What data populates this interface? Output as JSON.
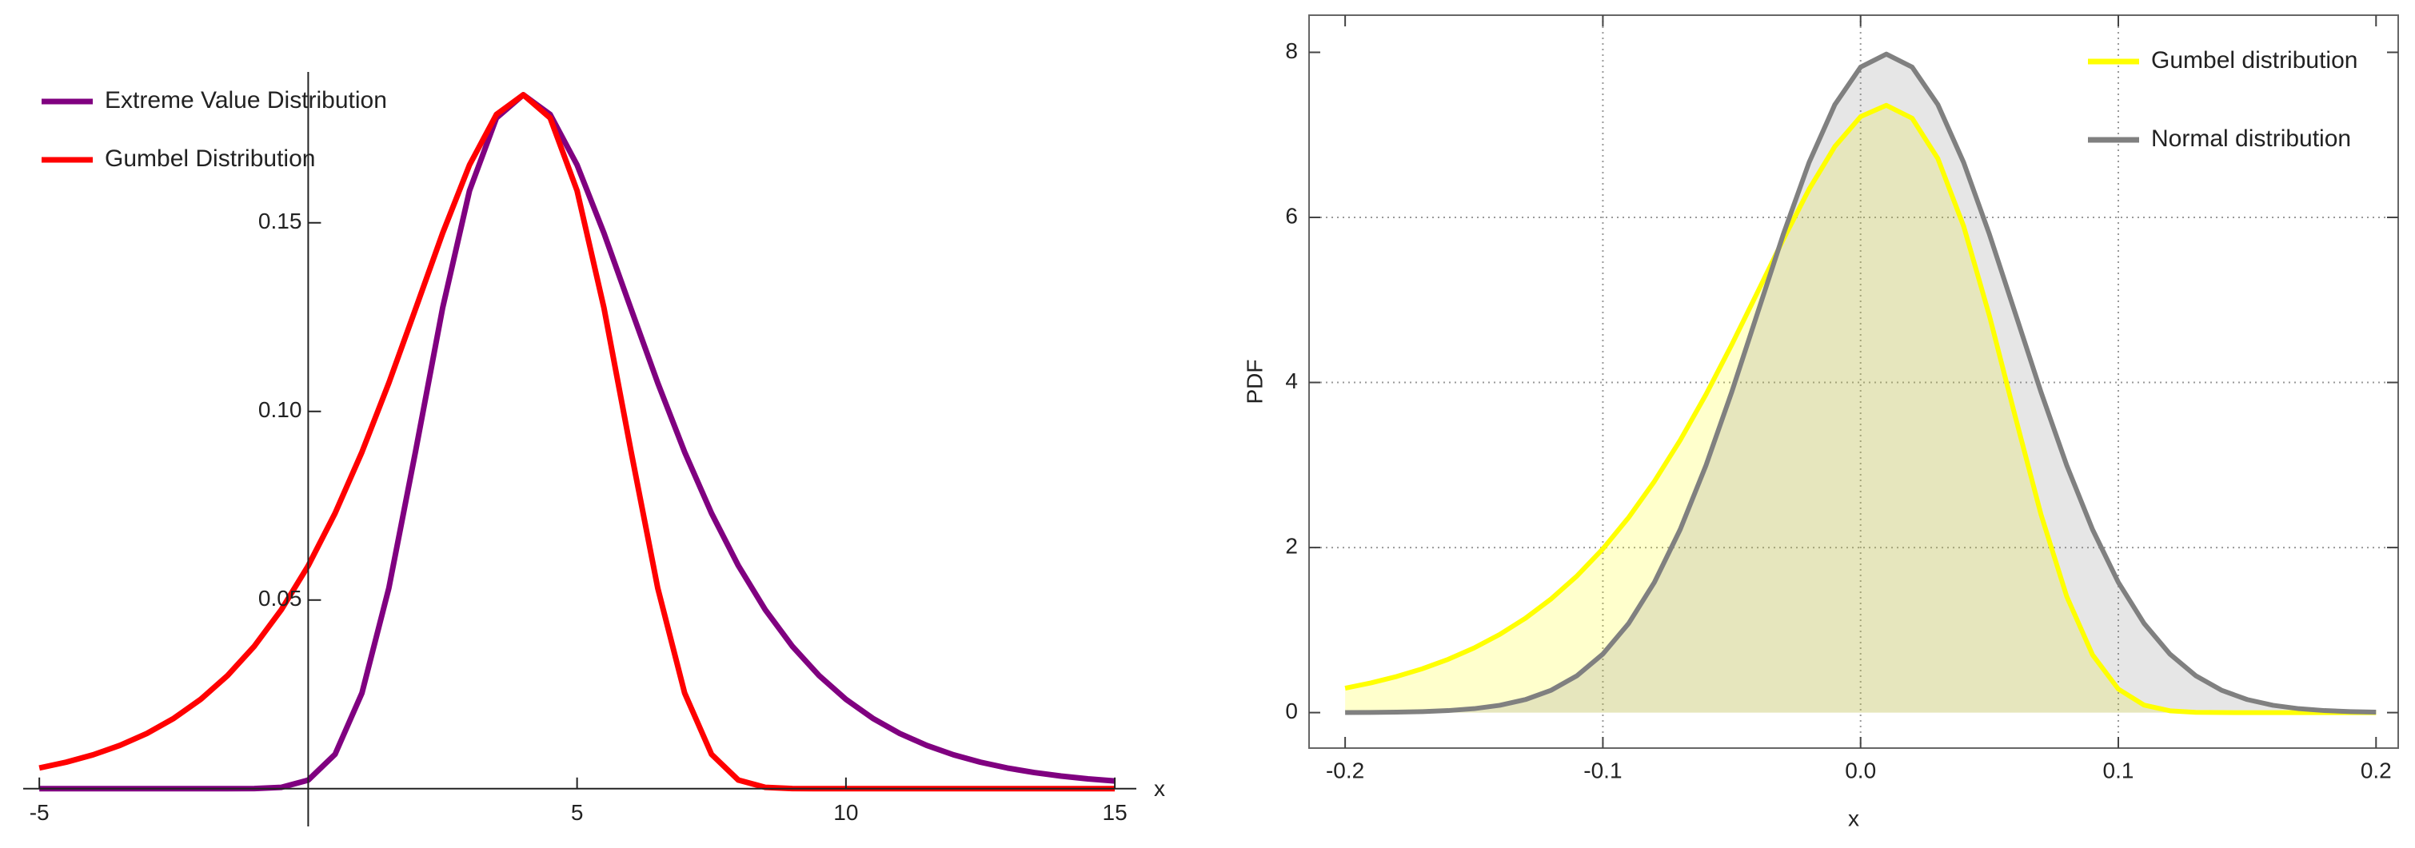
{
  "chart_data": [
    {
      "type": "line",
      "x": [
        -5,
        -4.5,
        -4,
        -3.5,
        -3,
        -2.5,
        -2,
        -1.5,
        -1,
        -0.5,
        0,
        0.5,
        1,
        1.5,
        2,
        2.5,
        3,
        3.5,
        4,
        4.5,
        5,
        5.5,
        6,
        6.5,
        7,
        7.5,
        8,
        8.5,
        9,
        9.5,
        10,
        10.5,
        11,
        11.5,
        12,
        12.5,
        13,
        13.5,
        14,
        14.5,
        15
      ],
      "series": [
        {
          "name": "Extreme Value Distribution",
          "color": "#800080",
          "values": [
            0,
            0,
            0,
            0,
            0,
            0,
            0,
            0,
            3e-05,
            0.00036,
            0.00228,
            0.00912,
            0.02537,
            0.05319,
            0.08969,
            0.12745,
            0.15853,
            0.17779,
            0.18394,
            0.17872,
            0.16535,
            0.14727,
            0.12732,
            0.10757,
            0.08925,
            0.07303,
            0.0591,
            0.04743,
            0.03781,
            0.02999,
            0.02368,
            0.01865,
            0.01465,
            0.01149,
            0.00899,
            0.00703,
            0.00549,
            0.00429,
            0.00335,
            0.00261,
            0.00204
          ]
        },
        {
          "name": "Gumbel Distribution",
          "color": "#ff0000",
          "values": [
            0.00549,
            0.00703,
            0.00899,
            0.01149,
            0.01465,
            0.01865,
            0.02368,
            0.02999,
            0.03781,
            0.04743,
            0.0591,
            0.07303,
            0.08925,
            0.10757,
            0.12732,
            0.14727,
            0.16535,
            0.17872,
            0.18394,
            0.17779,
            0.15853,
            0.12745,
            0.08969,
            0.05319,
            0.02537,
            0.00912,
            0.00228,
            0.00036,
            3e-05,
            0,
            0,
            0,
            0,
            0,
            0,
            0,
            0,
            0,
            0,
            0,
            0
          ]
        }
      ],
      "xlim": [
        -5.3,
        15.4
      ],
      "ylim": [
        -0.01,
        0.19
      ],
      "xticks": [
        -5,
        5,
        10,
        15
      ],
      "yticks": [
        0.05,
        {
          "value": 0.1,
          "label": "0.10"
        },
        0.15
      ],
      "x_label": "x",
      "legend": "top-left",
      "axes": "origin"
    },
    {
      "type": "area",
      "x": [
        -0.2,
        -0.19,
        -0.18,
        -0.17,
        -0.16,
        -0.15,
        -0.14,
        -0.13,
        -0.12,
        -0.11,
        -0.1,
        -0.09,
        -0.08,
        -0.07,
        -0.06,
        -0.05,
        -0.04,
        -0.03,
        -0.02,
        -0.01,
        0,
        0.01,
        0.02,
        0.03,
        0.04,
        0.05,
        0.06,
        0.07,
        0.08,
        0.09,
        0.1,
        0.11,
        0.12,
        0.13,
        0.14,
        0.15,
        0.16,
        0.17,
        0.18,
        0.19,
        0.2
      ],
      "series": [
        {
          "name": "Gumbel distribution",
          "color": "#ffff00",
          "values": [
            0.2955,
            0.3597,
            0.4375,
            0.5317,
            0.6456,
            0.7827,
            0.9474,
            1.1444,
            1.3792,
            1.657,
            1.9837,
            2.3641,
            2.8023,
            3.2998,
            3.8541,
            4.4574,
            5.0929,
            5.7337,
            6.3404,
            6.8582,
            7.221,
            7.3576,
            7.2019,
            6.7115,
            5.8923,
            4.8066,
            3.5875,
            2.4,
            1.4061,
            0.6996,
            0.2853,
            0.0913,
            0.0217,
            0.0036,
            0.0004,
            2e-05,
            0,
            0,
            0,
            0,
            0
          ]
        },
        {
          "name": "Normal distribution",
          "color": "#808080",
          "values": [
            0.0012,
            0.0027,
            0.0058,
            0.0122,
            0.0246,
            0.0477,
            0.0886,
            0.1583,
            0.2717,
            0.4479,
            0.7095,
            1.0799,
            1.579,
            2.2185,
            2.9946,
            3.8838,
            4.8395,
            5.7939,
            6.6646,
            7.3655,
            7.821,
            7.979,
            7.821,
            7.3655,
            6.6646,
            5.7939,
            4.8395,
            3.8838,
            2.9946,
            2.2185,
            1.579,
            1.0799,
            0.7095,
            0.4479,
            0.2717,
            0.1583,
            0.0886,
            0.0477,
            0.0246,
            0.0122,
            0.0058
          ]
        }
      ],
      "xlim": [
        -0.214,
        0.2086
      ],
      "ylim": [
        -0.43,
        8.45
      ],
      "xticks": [
        -0.2,
        -0.1,
        {
          "value": 0,
          "label": "0.0"
        },
        0.1,
        0.2
      ],
      "yticks": [
        0,
        2,
        4,
        6,
        8
      ],
      "xgrid": [
        -0.1,
        0,
        0.1
      ],
      "ygrid": [
        2,
        4,
        6
      ],
      "x_label": "x",
      "y_label": "PDF",
      "legend": "top-right",
      "axes": "frame"
    }
  ]
}
